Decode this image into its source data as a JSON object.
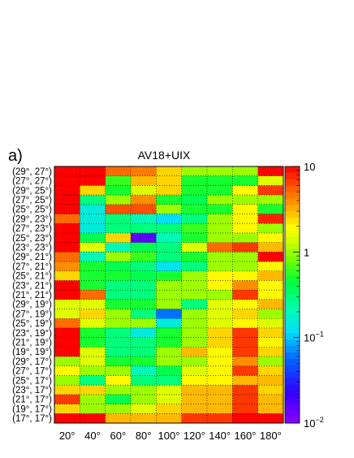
{
  "chart_data": {
    "type": "heatmap",
    "panel_label": "a)",
    "title": "AV18+UIX",
    "x_categories": [
      "20°",
      "40°",
      "60°",
      "80°",
      "100°",
      "120°",
      "140°",
      "160°",
      "180°"
    ],
    "y_categories": [
      "(29°, 27°)",
      "(27°, 27°)",
      "(29°, 25°)",
      "(27°, 25°)",
      "(25°, 25°)",
      "(29°, 23°)",
      "(27°, 23°)",
      "(25°, 23°)",
      "(23°, 23°)",
      "(29°, 21°)",
      "(27°, 21°)",
      "(25°, 21°)",
      "(23°, 21°)",
      "(21°, 21°)",
      "(29°, 19°)",
      "(27°, 19°)",
      "(25°, 19°)",
      "(23°, 19°)",
      "(21°, 19°)",
      "(19°, 19°)",
      "(29°, 17°)",
      "(27°, 17°)",
      "(25°, 17°)",
      "(23°, 17°)",
      "(21°, 17°)",
      "(19°, 17°)",
      "(17°, 17°)"
    ],
    "values": [
      [
        10,
        10,
        5,
        4.5,
        2.5,
        1,
        1,
        1,
        10
      ],
      [
        10,
        10,
        0.6,
        3,
        2.5,
        0.5,
        0.5,
        0.5,
        1.5
      ],
      [
        10,
        2.5,
        0.5,
        1.5,
        2.5,
        0.5,
        0.5,
        2,
        7
      ],
      [
        10,
        0.3,
        1,
        4,
        0.5,
        0.4,
        1,
        1,
        1
      ],
      [
        10,
        0.15,
        6,
        6,
        1,
        0.5,
        0.5,
        2,
        0.5
      ],
      [
        5,
        0.15,
        0.3,
        0.2,
        0.12,
        0.3,
        1,
        2,
        8
      ],
      [
        10,
        0.15,
        0.3,
        0.3,
        0.3,
        0.6,
        1,
        2,
        1
      ],
      [
        10,
        0.4,
        2.5,
        0.015,
        0.2,
        0.5,
        1,
        1,
        2
      ],
      [
        10,
        1.5,
        0.2,
        0.4,
        0.3,
        1.5,
        5,
        7,
        3
      ],
      [
        5,
        0.2,
        1,
        0.6,
        0.3,
        0.5,
        1,
        1,
        10
      ],
      [
        4,
        0.5,
        0.4,
        0.3,
        0.13,
        0.3,
        1,
        1,
        2
      ],
      [
        2.5,
        0.5,
        0.5,
        0.4,
        0.5,
        1,
        2,
        2,
        3
      ],
      [
        10,
        0.5,
        0.3,
        0.3,
        1,
        1,
        2,
        4,
        2
      ],
      [
        10,
        5,
        0.3,
        0.3,
        1,
        1,
        1,
        7,
        2
      ],
      [
        1.5,
        1.5,
        0.5,
        0.5,
        1,
        0.3,
        1.5,
        2,
        3
      ],
      [
        1.5,
        2.5,
        1,
        0.3,
        0.06,
        1,
        1.5,
        2.5,
        1
      ],
      [
        5,
        1.5,
        1,
        1,
        0.15,
        1,
        1.5,
        2,
        1.5
      ],
      [
        10,
        0.5,
        0.3,
        0.15,
        0.5,
        1,
        2.5,
        7,
        2.5
      ],
      [
        10,
        0.5,
        0.3,
        0.3,
        0.5,
        1,
        2.5,
        7,
        2
      ],
      [
        10,
        1.5,
        0.3,
        0.3,
        1,
        3,
        2,
        7,
        2.5
      ],
      [
        1,
        1.5,
        0.5,
        0.5,
        1,
        1,
        2,
        4,
        1
      ],
      [
        2,
        1,
        1,
        0.2,
        0.4,
        1.5,
        2,
        7,
        2.5
      ],
      [
        1,
        0.3,
        2,
        0.3,
        0.3,
        2,
        2,
        3,
        3
      ],
      [
        2.5,
        2.5,
        1,
        1,
        1.5,
        3,
        3,
        7,
        2.5
      ],
      [
        7,
        1,
        0.4,
        1,
        1.5,
        3,
        3,
        7,
        3
      ],
      [
        2.5,
        1,
        1,
        1.5,
        2.5,
        3,
        3,
        7,
        3
      ],
      [
        10,
        10,
        3,
        3,
        3,
        7,
        7,
        10,
        10
      ]
    ],
    "zlim": [
      0.01,
      10
    ],
    "z_scale": "log",
    "colorbar_ticks": [
      {
        "value": 10,
        "label": "10"
      },
      {
        "value": 1,
        "label": "1"
      },
      {
        "value": 0.1,
        "base": "10",
        "exp": "−1"
      },
      {
        "value": 0.01,
        "base": "10",
        "exp": "−2"
      }
    ],
    "grid": "dotted"
  }
}
